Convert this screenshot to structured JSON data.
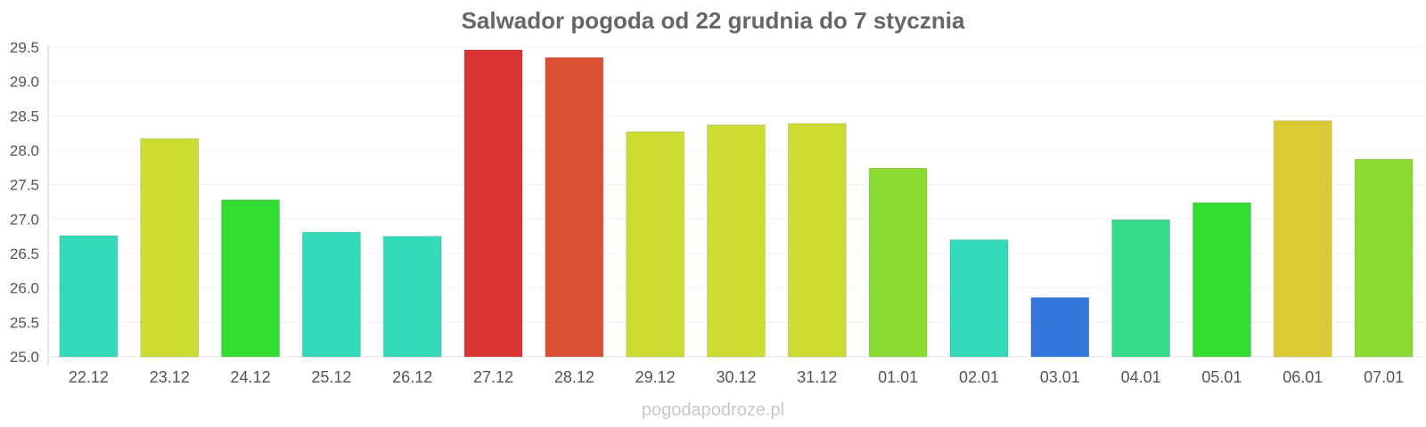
{
  "chart_data": {
    "type": "bar",
    "title": "Salwador pogoda od 22 grudnia do 7 stycznia",
    "xlabel": "",
    "ylabel": "",
    "ylim": [
      25.0,
      29.5
    ],
    "y_ticks": [
      "25.0",
      "25.5",
      "26.0",
      "26.5",
      "27.0",
      "27.5",
      "28.0",
      "28.5",
      "29.0",
      "29.5"
    ],
    "grid": true,
    "categories": [
      "22.12",
      "23.12",
      "24.12",
      "25.12",
      "26.12",
      "27.12",
      "28.12",
      "29.12",
      "30.12",
      "31.12",
      "01.01",
      "02.01",
      "03.01",
      "04.01",
      "05.01",
      "06.01",
      "07.01"
    ],
    "values": [
      26.76,
      28.17,
      27.28,
      26.81,
      26.75,
      29.46,
      29.35,
      28.27,
      28.37,
      28.39,
      27.74,
      26.7,
      25.86,
      26.99,
      27.24,
      28.43,
      27.87
    ],
    "colors": [
      "#33dbb8",
      "#ccdc33",
      "#33db33",
      "#33dbb8",
      "#33dbb8",
      "#db3333",
      "#db5033",
      "#ccdc33",
      "#ccdc33",
      "#ccdc33",
      "#8adc33",
      "#33dbb8",
      "#3377db",
      "#33db88",
      "#33db33",
      "#dbca33",
      "#8adc33"
    ]
  },
  "watermark": "pogodapodroze.pl"
}
